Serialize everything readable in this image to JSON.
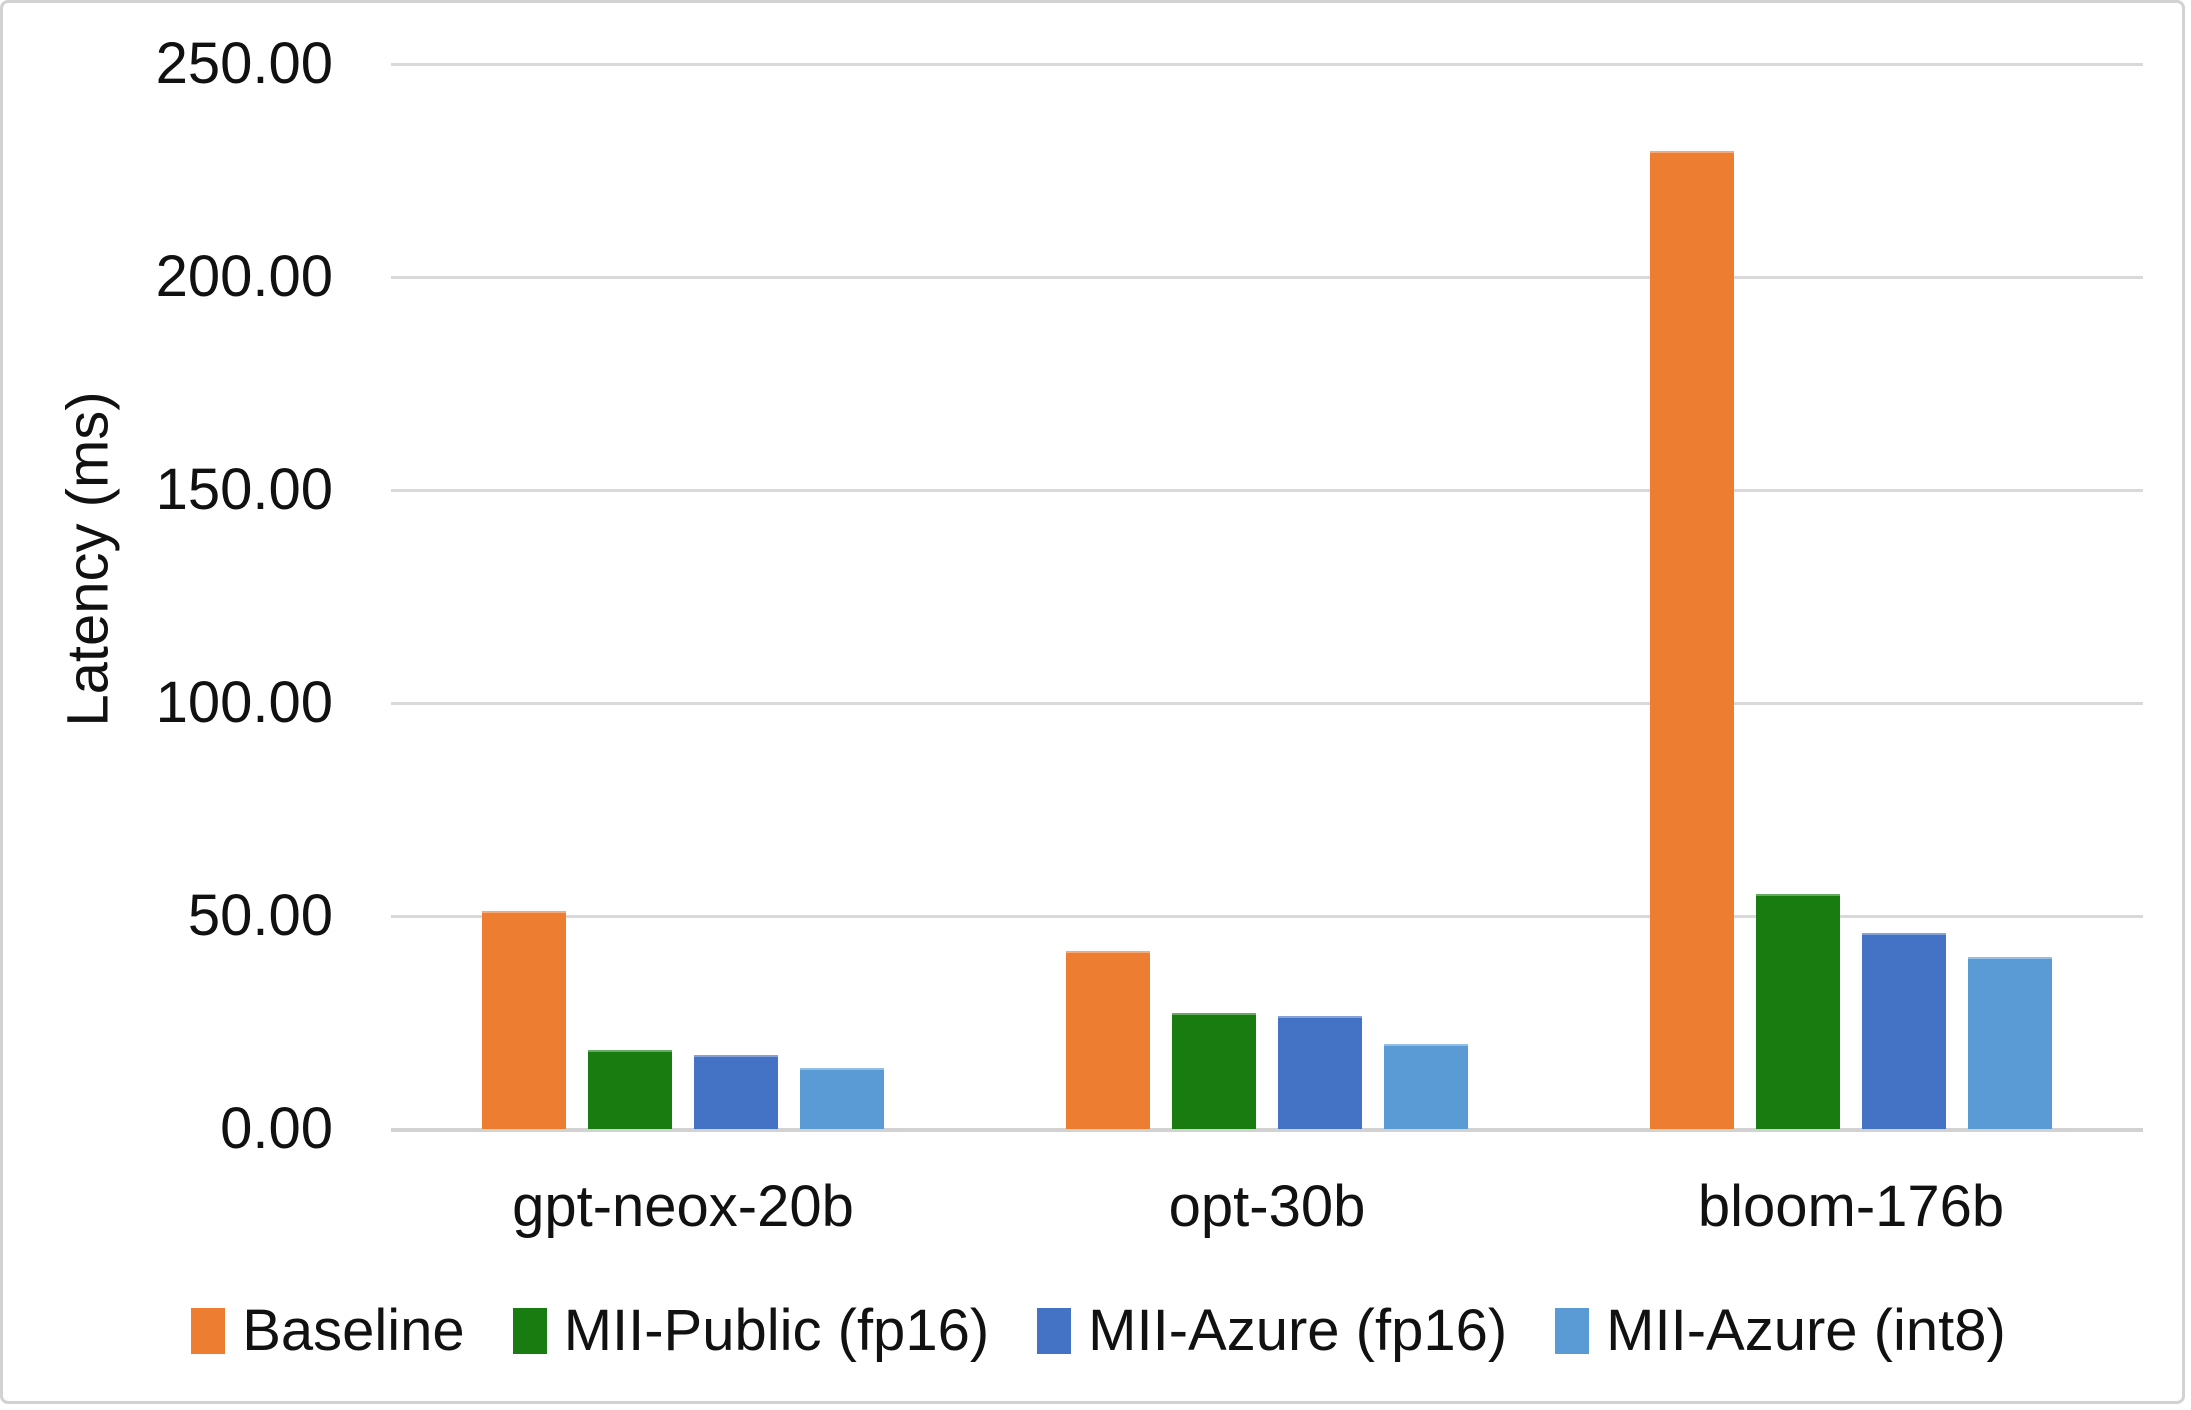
{
  "chart_data": {
    "type": "bar",
    "title": "",
    "ylabel": "Latency (ms)",
    "xlabel": "",
    "categories": [
      "gpt-neox-20b",
      "opt-30b",
      "bloom-176b"
    ],
    "series": [
      {
        "name": "Baseline",
        "color": "#ED7D31",
        "values": [
          51.2,
          41.8,
          229.6
        ]
      },
      {
        "name": "MII-Public (fp16)",
        "color": "#187C10",
        "values": [
          18.5,
          27.2,
          55.2
        ]
      },
      {
        "name": "MII-Azure (fp16)",
        "color": "#4472C4",
        "values": [
          17.3,
          26.5,
          46.0
        ]
      },
      {
        "name": "MII-Azure (int8)",
        "color": "#5B9BD5",
        "values": [
          14.3,
          20.0,
          40.3
        ]
      }
    ],
    "ylim": [
      0,
      250
    ],
    "ytick_step": 50,
    "yticks": [
      "250.00",
      "200.00",
      "150.00",
      "100.00",
      "50.00",
      "0.00"
    ],
    "grid": true,
    "legend_position": "bottom"
  },
  "colors": {
    "gridline": "#d9d9d9",
    "axis_line": "#d2d2d2",
    "text": "#111111",
    "background": "#ffffff",
    "frame_border": "#d2d2d2"
  }
}
